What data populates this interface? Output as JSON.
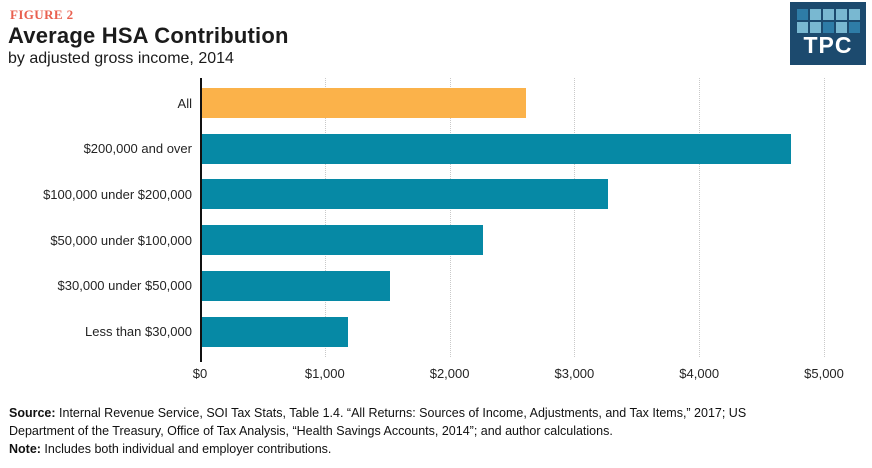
{
  "figure_label": "FIGURE 2",
  "title": "Average HSA Contribution",
  "subtitle": "by adjusted gross income, 2014",
  "logo": {
    "text": "TPC",
    "background": "#1c4a6e",
    "square_colors": {
      "light": "#79b8d1",
      "medium": "#2e7ca7"
    },
    "grid_pattern": [
      [
        "medium",
        "light",
        "light",
        "light",
        "light"
      ],
      [
        "light",
        "light",
        "medium",
        "light",
        "medium"
      ]
    ]
  },
  "chart_data": {
    "type": "bar",
    "orientation": "horizontal",
    "title": "Average HSA Contribution",
    "subtitle": "by adjusted gross income, 2014",
    "categories": [
      "All",
      "$200,000 and over",
      "$100,000 under $200,000",
      "$50,000 under $100,000",
      "$30,000 under $50,000",
      "Less than $30,000"
    ],
    "values": [
      2600,
      4720,
      3250,
      2250,
      1510,
      1170
    ],
    "bar_colors": [
      "#fbb24a",
      "#0689a5",
      "#0689a5",
      "#0689a5",
      "#0689a5",
      "#0689a5"
    ],
    "xlim": [
      0,
      5000
    ],
    "x_ticks": [
      0,
      1000,
      2000,
      3000,
      4000,
      5000
    ],
    "x_tick_labels": [
      "$0",
      "$1,000",
      "$2,000",
      "$3,000",
      "$4,000",
      "$5,000"
    ],
    "grid": "vertical-dotted",
    "legend": "none"
  },
  "colors": {
    "accent_orange": "#fbb24a",
    "accent_teal": "#0689a5",
    "figure_label_coral": "#e9604f",
    "gridline": "#c9c9c9",
    "axis": "#111111"
  },
  "footer": {
    "source_label": "Source:",
    "source_text": " Internal Revenue Service, SOI Tax Stats, Table 1.4. “All Returns: Sources of Income, Adjustments, and Tax Items,” 2017; US Department of the Treasury, Office of Tax Analysis, “Health Savings Accounts, 2014”; and author calculations.",
    "note_label": "Note:",
    "note_text": " Includes both individual and employer contributions."
  }
}
